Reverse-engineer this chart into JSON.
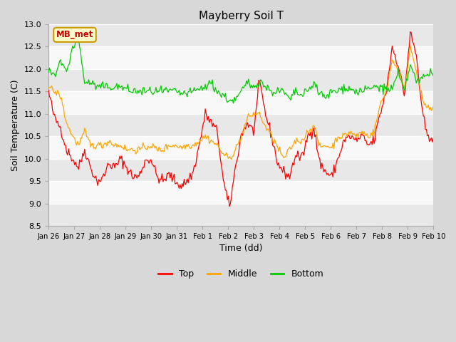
{
  "title": "Mayberry Soil T",
  "xlabel": "Time (dd)",
  "ylabel": "Soil Temperature (C)",
  "legend_label": "MB_met",
  "series_labels": [
    "Top",
    "Middle",
    "Bottom"
  ],
  "series_colors": [
    "#ff0000",
    "#ffa500",
    "#00cc00"
  ],
  "ylim": [
    8.5,
    13.0
  ],
  "yticks": [
    8.5,
    9.0,
    9.5,
    10.0,
    10.5,
    11.0,
    11.5,
    12.0,
    12.5,
    13.0
  ],
  "xtick_labels": [
    "Jan 26",
    "Jan 27",
    "Jan 28",
    "Jan 29",
    "Jan 30",
    "Jan 31",
    "Feb 1",
    "Feb 2",
    "Feb 3",
    "Feb 4",
    "Feb 5",
    "Feb 6",
    "Feb 7",
    "Feb 8",
    "Feb 9",
    "Feb 10"
  ],
  "fig_bg_color": "#d8d8d8",
  "plot_bg_color": "#ffffff",
  "band_color_light": "#f0f0f0",
  "band_color_dark": "#e0e0e0",
  "grid_color": "#ffffff",
  "annotation_box_color": "#ffffcc",
  "annotation_text_color": "#cc0000",
  "annotation_border_color": "#cc9900"
}
